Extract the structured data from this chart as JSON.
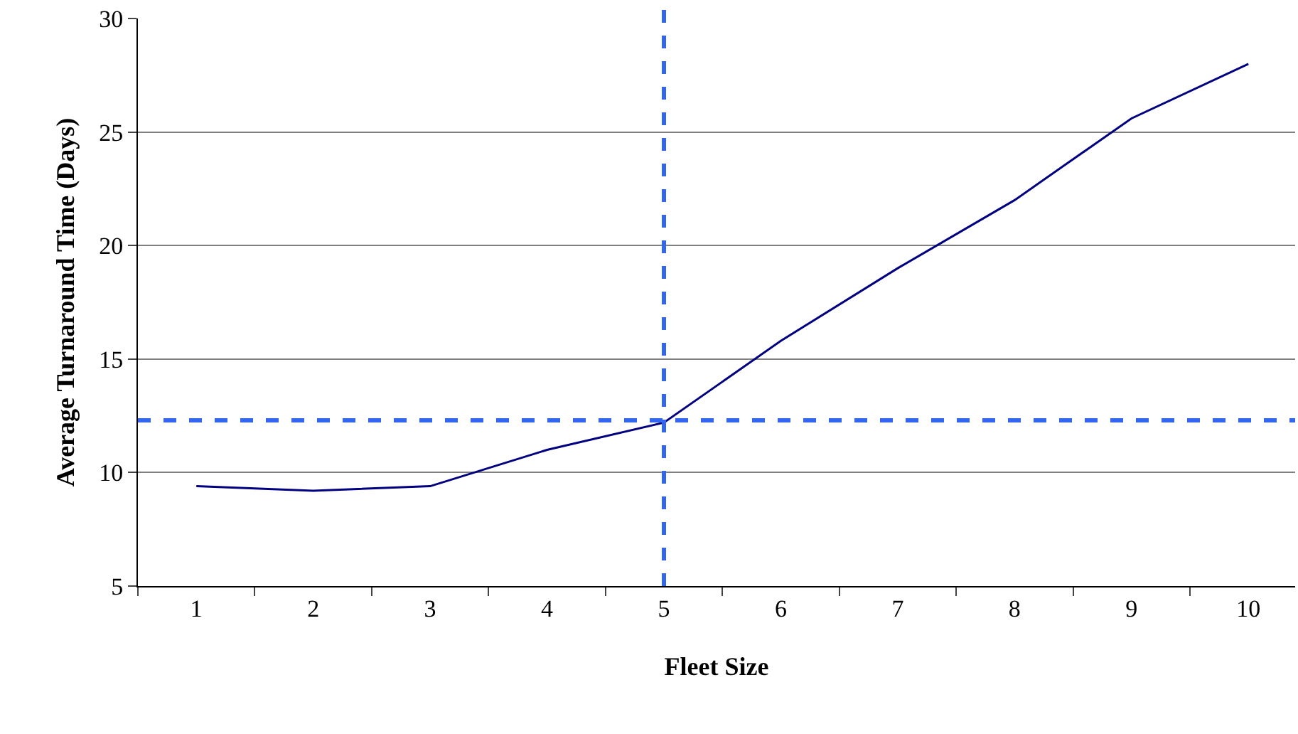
{
  "chart_data": {
    "type": "line",
    "xlabel": "Fleet Size",
    "ylabel": "Average Turnaround Time (Days)",
    "categories": [
      "1",
      "2",
      "3",
      "4",
      "5",
      "6",
      "7",
      "8",
      "9",
      "10"
    ],
    "series": [
      {
        "color": "#000080",
        "values": [
          9.4,
          9.2,
          9.4,
          11.0,
          12.2,
          15.8,
          19.0,
          22.0,
          25.6,
          28.0
        ]
      }
    ],
    "ylim": [
      5,
      30
    ],
    "yticks": [
      5,
      10,
      15,
      20,
      25,
      30
    ],
    "grid": "y",
    "marker": "none",
    "line_style": "solid",
    "ref_lines": [
      {
        "axis": "x",
        "value": "5",
        "color": "#3366ee",
        "line_style": "dashed"
      },
      {
        "axis": "y",
        "value": 12.3,
        "color": "#3366ee",
        "line_style": "dashed"
      }
    ]
  }
}
